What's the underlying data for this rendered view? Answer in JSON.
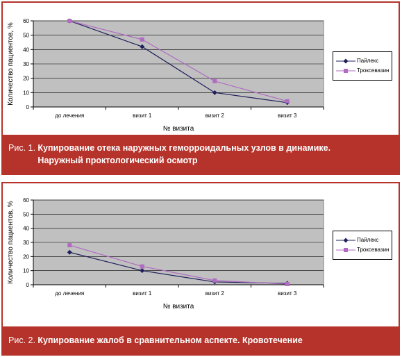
{
  "chart_data": [
    {
      "type": "line",
      "categories": [
        "до лечения",
        "визит 1",
        "визит 2",
        "визит 3"
      ],
      "series": [
        {
          "name": "Пайлекс",
          "values": [
            60,
            42,
            10,
            3
          ],
          "color": "#1f1f5c",
          "marker": "diamond"
        },
        {
          "name": "Троксевазин",
          "values": [
            60,
            47,
            18,
            4
          ],
          "color": "#b06cc2",
          "marker": "square"
        }
      ],
      "xlabel": "№ визита",
      "ylabel": "Количество пациентов, %",
      "ylim": [
        0,
        60
      ],
      "yticks": [
        0,
        10,
        20,
        30,
        40,
        50,
        60
      ],
      "grid": true,
      "plot_bg": "#c0c0c0",
      "legend": "right",
      "caption_number": "Рис. 1. ",
      "caption_title": "Купирование отека наружных геморроидальных узлов в динамике. Наружный проктологический осмотр"
    },
    {
      "type": "line",
      "categories": [
        "до лечения",
        "визит 1",
        "визит 2",
        "визит 3"
      ],
      "series": [
        {
          "name": "Пайлекс",
          "values": [
            23,
            10,
            2,
            1
          ],
          "color": "#1f1f5c",
          "marker": "diamond"
        },
        {
          "name": "Троксевазин",
          "values": [
            28,
            13,
            3,
            0.5
          ],
          "color": "#b06cc2",
          "marker": "square"
        }
      ],
      "xlabel": "№ визита",
      "ylabel": "Количество пациентов, %",
      "ylim": [
        0,
        60
      ],
      "yticks": [
        0,
        10,
        20,
        30,
        40,
        50,
        60
      ],
      "grid": true,
      "plot_bg": "#c0c0c0",
      "legend": "right",
      "caption_number": "Рис. 2. ",
      "caption_title": "Купирование жалоб в сравнительном аспекте. Кровотечение"
    }
  ]
}
